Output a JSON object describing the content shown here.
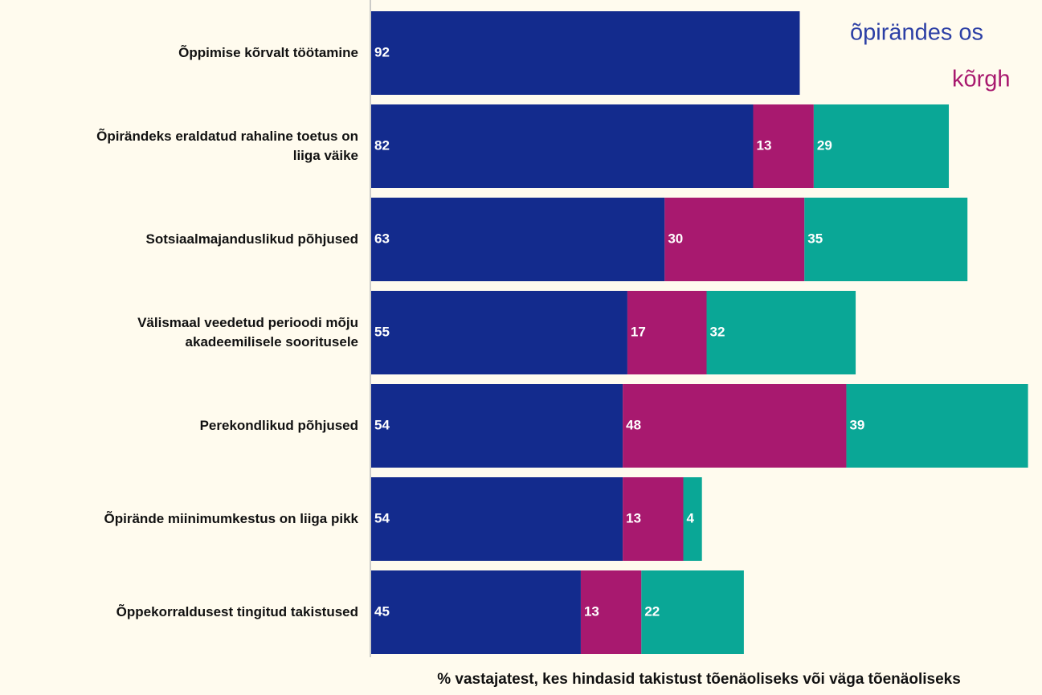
{
  "chart_data": {
    "type": "stacked_barh",
    "annotations": [
      {
        "text": "õpirändes os",
        "color": "#2c3fa5"
      },
      {
        "text": "kõrgh",
        "color": "#a8196f"
      }
    ],
    "categories": [
      "Õppimise kõrvalt töötamine",
      "Õpirändeks eraldatud rahaline toetus on\nliiga väike",
      "Sotsiaalmajanduslikud põhjused",
      "Välismaal veedetud perioodi mõju\nakadeemilisele sooritusele",
      "Perekondlikud põhjused",
      "Õpirände miinimumkestus on liiga pikk",
      "Õppekorraldusest tingitud takistused"
    ],
    "series": [
      {
        "color": "#132b8d",
        "values": [
          92,
          82,
          63,
          55,
          54,
          54,
          45
        ]
      },
      {
        "color": "#a8196f",
        "values": [
          null,
          13,
          30,
          17,
          48,
          13,
          13
        ]
      },
      {
        "color": "#0aa796",
        "values": [
          null,
          29,
          35,
          32,
          39,
          4,
          22
        ]
      }
    ],
    "xlabel": "% vastajatest, kes hindasid takistust tõenäoliseks või väga tõenäoliseks",
    "xlim": [
      0,
      144
    ]
  }
}
